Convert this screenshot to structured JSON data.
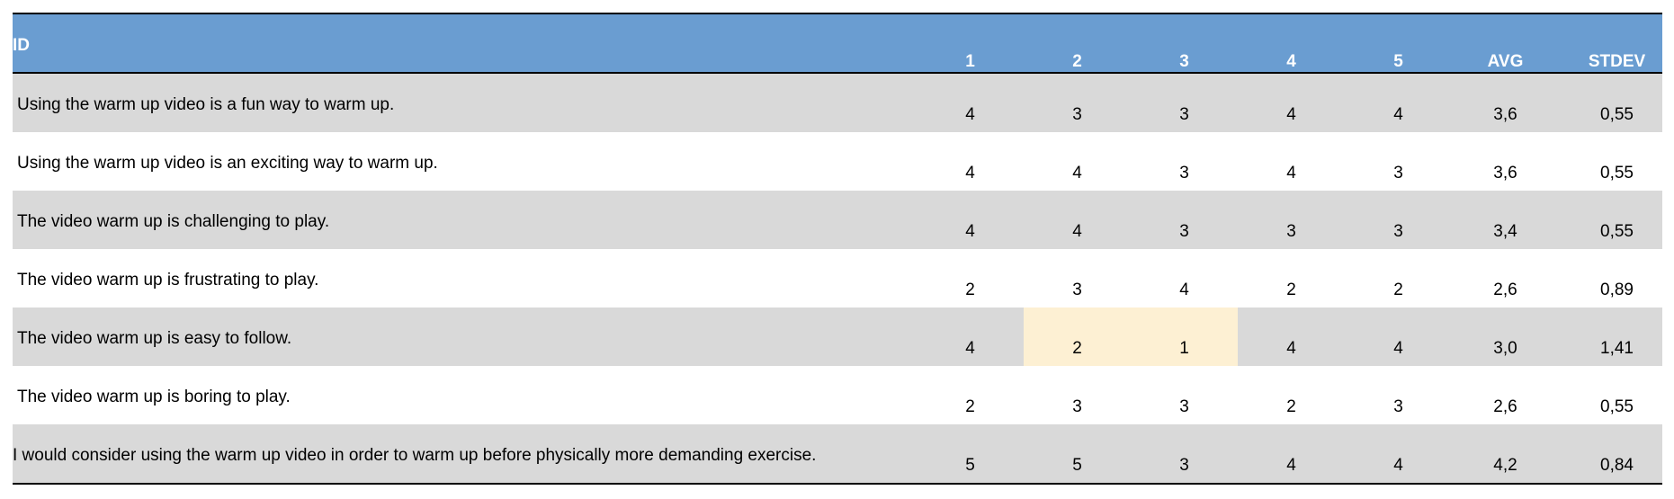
{
  "header": {
    "id": "ID",
    "col1": "1",
    "col2": "2",
    "col3": "3",
    "col4": "4",
    "col5": "5",
    "avg": "AVG",
    "stdev": "STDEV"
  },
  "highlight_color": "#fdf0d3",
  "header_color": "#6a9dd1",
  "rows": [
    {
      "question": "Using the warm up video is a fun way to warm up.",
      "v1": "4",
      "v2": "3",
      "v3": "3",
      "v4": "4",
      "v5": "4",
      "avg": "3,6",
      "stdev": "0,55"
    },
    {
      "question": "Using the warm up video is an exciting way to warm up.",
      "v1": "4",
      "v2": "4",
      "v3": "3",
      "v4": "4",
      "v5": "3",
      "avg": "3,6",
      "stdev": "0,55"
    },
    {
      "question": "The video warm up is challenging to play.",
      "v1": "4",
      "v2": "4",
      "v3": "3",
      "v4": "3",
      "v5": "3",
      "avg": "3,4",
      "stdev": "0,55"
    },
    {
      "question": "The video warm up is frustrating to play.",
      "v1": "2",
      "v2": "3",
      "v3": "4",
      "v4": "2",
      "v5": "2",
      "avg": "2,6",
      "stdev": "0,89"
    },
    {
      "question": "The video warm up is easy to follow.",
      "v1": "4",
      "v2": "2",
      "v3": "1",
      "v4": "4",
      "v5": "4",
      "avg": "3,0",
      "stdev": "1,41"
    },
    {
      "question": "The video warm up is boring to play.",
      "v1": "2",
      "v2": "3",
      "v3": "3",
      "v4": "2",
      "v5": "3",
      "avg": "2,6",
      "stdev": "0,55"
    },
    {
      "question": "I would consider using the warm up video in order to warm up before physically more demanding exercise.",
      "v1": "5",
      "v2": "5",
      "v3": "3",
      "v4": "4",
      "v5": "4",
      "avg": "4,2",
      "stdev": "0,84"
    }
  ]
}
